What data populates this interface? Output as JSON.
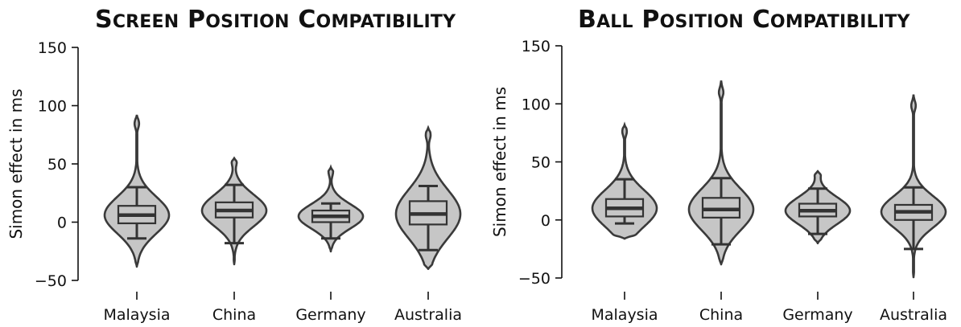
{
  "chart_data": [
    {
      "type": "violin",
      "title": "Screen Position Compatibility",
      "xlabel": "",
      "ylabel": "Simon effect in ms",
      "ylim": [
        -50,
        150
      ],
      "yticks": [
        -50,
        0,
        50,
        100,
        150
      ],
      "categories": [
        "Malaysia",
        "China",
        "Germany",
        "Australia"
      ],
      "fill_color": "#c6c6c6",
      "stroke_color": "#3a3a3a",
      "groups": [
        {
          "category": "Malaysia",
          "min": -38,
          "whisker_low": -14,
          "q1": -1,
          "median": 6,
          "q3": 14,
          "whisker_high": 30,
          "max": 92
        },
        {
          "category": "China",
          "min": -36,
          "whisker_low": -18,
          "q1": 4,
          "median": 10,
          "q3": 17,
          "whisker_high": 32,
          "max": 55
        },
        {
          "category": "Germany",
          "min": -25,
          "whisker_low": -14,
          "q1": 0,
          "median": 5,
          "q3": 10,
          "whisker_high": 16,
          "max": 47
        },
        {
          "category": "Australia",
          "min": -40,
          "whisker_low": -24,
          "q1": -2,
          "median": 7,
          "q3": 18,
          "whisker_high": 31,
          "max": 81
        }
      ]
    },
    {
      "type": "violin",
      "title": "Ball Position Compatibility",
      "xlabel": "",
      "ylabel": "Simon effect in ms",
      "ylim": [
        -50,
        150
      ],
      "yticks": [
        -50,
        0,
        50,
        100,
        150
      ],
      "categories": [
        "Malaysia",
        "China",
        "Germany",
        "Australia"
      ],
      "fill_color": "#c6c6c6",
      "stroke_color": "#3a3a3a",
      "groups": [
        {
          "category": "Malaysia",
          "min": -16,
          "whisker_low": -3,
          "q1": 3,
          "median": 10,
          "q3": 18,
          "whisker_high": 35,
          "max": 82
        },
        {
          "category": "China",
          "min": -38,
          "whisker_low": -21,
          "q1": 2,
          "median": 9,
          "q3": 19,
          "whisker_high": 36,
          "max": 120
        },
        {
          "category": "Germany",
          "min": -20,
          "whisker_low": -12,
          "q1": 3,
          "median": 8,
          "q3": 14,
          "whisker_high": 27,
          "max": 42
        },
        {
          "category": "Australia",
          "min": -49,
          "whisker_low": -25,
          "q1": 0,
          "median": 7,
          "q3": 13,
          "whisker_high": 28,
          "max": 108
        }
      ]
    }
  ]
}
